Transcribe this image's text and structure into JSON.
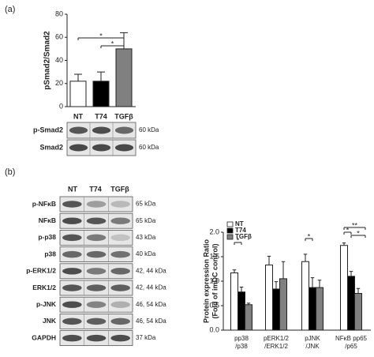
{
  "chart_data": [
    {
      "type": "bar",
      "panel": "(a)",
      "ylabel": "pSmad2/Smad2",
      "categories": [
        "NT",
        "T74",
        "TGFβ"
      ],
      "values": [
        22,
        22,
        50
      ],
      "errors": [
        6,
        8,
        14
      ],
      "colors": [
        "#ffffff",
        "#000000",
        "#808080"
      ],
      "ylim": [
        0,
        80
      ],
      "yticks": [
        0,
        20,
        40,
        60,
        80
      ],
      "annotations": [
        "*",
        "*"
      ]
    },
    {
      "type": "grouped-bar",
      "panel": "(b)",
      "ylabel": [
        "Protein expression Ratio",
        "(Fold of imDC control)"
      ],
      "categories": [
        [
          "pp38",
          "/p38"
        ],
        [
          "pERK1/2",
          "/ERK1/2"
        ],
        [
          "pJNK",
          "/JNK"
        ],
        [
          "NFκB pp65",
          "/p65"
        ]
      ],
      "series": [
        {
          "name": "NT",
          "color": "#ffffff",
          "values": [
            1.17,
            1.33,
            1.4,
            1.73
          ],
          "errors": [
            0.06,
            0.18,
            0.15,
            0.05
          ]
        },
        {
          "name": "T74",
          "color": "#000000",
          "values": [
            0.78,
            0.84,
            0.87,
            1.1
          ],
          "errors": [
            0.1,
            0.15,
            0.2,
            0.1
          ]
        },
        {
          "name": "TGFβ",
          "color": "#808080",
          "values": [
            0.52,
            1.05,
            0.87,
            0.75
          ],
          "errors": [
            0.03,
            0.35,
            0.15,
            0.1
          ]
        }
      ],
      "ylim": [
        0,
        2.0
      ],
      "yticks": [
        {
          "value": 0,
          "label": "0.0"
        },
        {
          "value": 0.5,
          "label": "0.5"
        },
        {
          "value": 1,
          "label": "1.0"
        },
        {
          "value": 1.5,
          "label": "1.5"
        },
        {
          "value": 2,
          "label": "2.0"
        }
      ],
      "legend": "upper left",
      "annotations": [
        "*",
        "*",
        "**",
        "*",
        "*"
      ]
    }
  ],
  "blots_a": {
    "rows": [
      {
        "label": "p-Smad2",
        "size": "60 kDa"
      },
      {
        "label": "Smad2",
        "size": "60 kDa"
      }
    ]
  },
  "blots_b": {
    "lanes": [
      "NT",
      "T74",
      "TGFβ"
    ],
    "rows": [
      {
        "label": "p-NFκB",
        "size": "65 kDa"
      },
      {
        "label": "NFκB",
        "size": "65 kDa"
      },
      {
        "label": "p-p38",
        "size": "43 kDa"
      },
      {
        "label": "p38",
        "size": "40 kDa"
      },
      {
        "label": "p-ERK1/2",
        "size": "42, 44 kDa"
      },
      {
        "label": "ERK1/2",
        "size": "42, 44 kDa"
      },
      {
        "label": "p-JNK",
        "size": "46, 54 kDa"
      },
      {
        "label": "JNK",
        "size": "46, 54 kDa"
      },
      {
        "label": "GAPDH",
        "size": "37 kDa"
      }
    ]
  }
}
